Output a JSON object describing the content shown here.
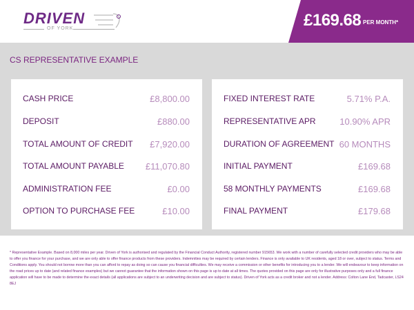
{
  "header": {
    "logo_text": "DRIVEN",
    "logo_sub": "OF YORK",
    "price": "£169.68",
    "per_month": "PER MONTH*",
    "accent": "#8a2a8b"
  },
  "main": {
    "title": "CS REPRESENTATIVE EXAMPLE",
    "left": [
      {
        "label": "CASH PRICE",
        "value": "£8,800.00"
      },
      {
        "label": "DEPOSIT",
        "value": "£880.00"
      },
      {
        "label": "TOTAL AMOUNT OF CREDIT",
        "value": "£7,920.00"
      },
      {
        "label": "TOTAL AMOUNT PAYABLE",
        "value": "£11,070.80"
      },
      {
        "label": "ADMINISTRATION FEE",
        "value": "£0.00"
      },
      {
        "label": "OPTION TO PURCHASE FEE",
        "value": "£10.00"
      }
    ],
    "right": [
      {
        "label": "FIXED INTEREST RATE",
        "value": "5.71% P.A."
      },
      {
        "label": "REPRESENTATIVE APR",
        "value": "10.90% APR"
      },
      {
        "label": "DURATION OF AGREEMENT",
        "value": "60 MONTHS"
      },
      {
        "label": "INITIAL PAYMENT",
        "value": "£169.68"
      },
      {
        "label": "58 MONTHLY PAYMENTS",
        "value": "£169.68"
      },
      {
        "label": "FINAL PAYMENT",
        "value": "£179.68"
      }
    ]
  },
  "footnote": "* Representative Example. Based on 8,000 miles per year. Driven of York is authorised and regulated by the Financial Conduct Authority, registered number 915653. We work with a number of carefully selected credit providers who may be able to offer you finance for your purchase, and we are only able to offer finance products from these providers. Indemnities may be required by certain lenders. Finance is only available to UK residents, aged 18 or over, subject to status. Terms and Conditions apply. You should not borrow more than you can afford to repay as doing so can cause you financial difficulties. We may receive a commission or other benefits for introducing you to a lender. We will endeavour to keep information on the road prices up to date (and related finance examples) but we cannot guarantee that the information shown on this page is up to date at all times. The quotes provided on this page are only for illustrative purposes only and a full finance application will have to be made to determine the exact details (all applications are subject to an underwriting decision and are subject to status). Driven of York acts as a credit broker and not a lender. Address: Colton Lane End, Tadcaster, LS24 8EJ"
}
